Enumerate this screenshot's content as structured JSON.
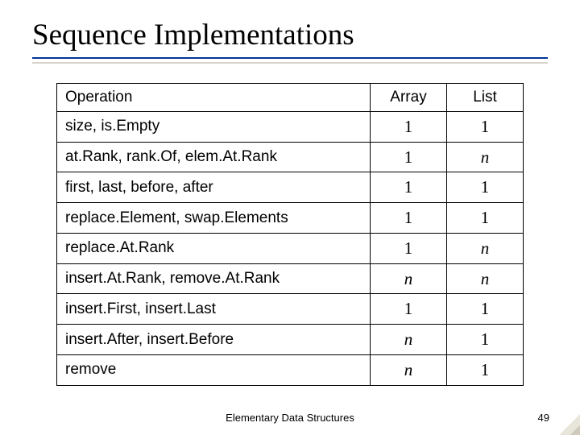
{
  "title": "Sequence Implementations",
  "footer": "Elementary Data Structures",
  "page_number": "49",
  "colors": {
    "underline": "#003399",
    "text": "#000000",
    "background": "#ffffff",
    "corner": "#e8e5da"
  },
  "table": {
    "columns": [
      "Operation",
      "Array",
      "List"
    ],
    "col_align": [
      "left",
      "center",
      "center"
    ],
    "header_fontsize": 19,
    "cell_fontsize": 19,
    "value_fontfamily": "Times New Roman",
    "border_color": "#000000",
    "rows": [
      {
        "op": "size, is.Empty",
        "array": {
          "v": "1",
          "italic": false
        },
        "list": {
          "v": "1",
          "italic": false
        }
      },
      {
        "op": "at.Rank, rank.Of, elem.At.Rank",
        "array": {
          "v": "1",
          "italic": false
        },
        "list": {
          "v": "n",
          "italic": true
        }
      },
      {
        "op": "first, last, before, after",
        "array": {
          "v": "1",
          "italic": false
        },
        "list": {
          "v": "1",
          "italic": false
        }
      },
      {
        "op": "replace.Element, swap.Elements",
        "array": {
          "v": "1",
          "italic": false
        },
        "list": {
          "v": "1",
          "italic": false
        }
      },
      {
        "op": "replace.At.Rank",
        "array": {
          "v": "1",
          "italic": false
        },
        "list": {
          "v": "n",
          "italic": true
        }
      },
      {
        "op": "insert.At.Rank, remove.At.Rank",
        "array": {
          "v": "n",
          "italic": true
        },
        "list": {
          "v": "n",
          "italic": true
        }
      },
      {
        "op": "insert.First, insert.Last",
        "array": {
          "v": "1",
          "italic": false
        },
        "list": {
          "v": "1",
          "italic": false
        }
      },
      {
        "op": "insert.After, insert.Before",
        "array": {
          "v": "n",
          "italic": true
        },
        "list": {
          "v": "1",
          "italic": false
        }
      },
      {
        "op": "remove",
        "array": {
          "v": "n",
          "italic": true
        },
        "list": {
          "v": "1",
          "italic": false
        }
      }
    ]
  }
}
